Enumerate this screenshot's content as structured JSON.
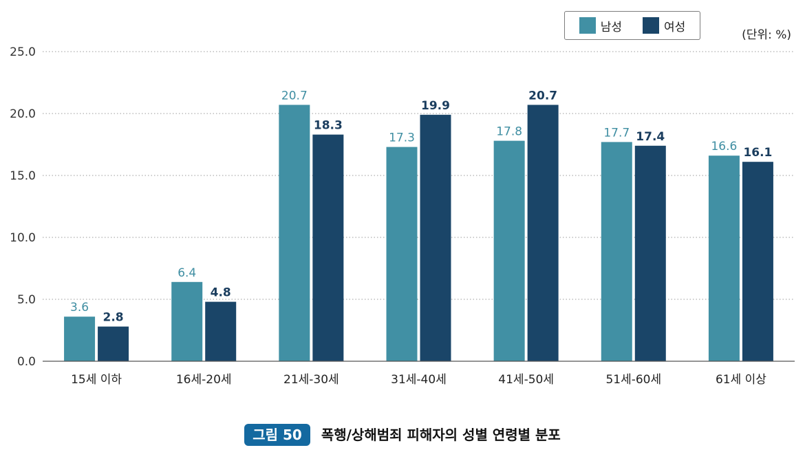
{
  "legend": {
    "items": [
      {
        "label": "남성",
        "color": "#4190a4"
      },
      {
        "label": "여성",
        "color": "#1a4568"
      }
    ]
  },
  "unit": "(단위: %)",
  "caption": {
    "badge": "그림 50",
    "title": "폭행/상해범죄 피해자의 성별 연령별 분포"
  },
  "chart_data": {
    "type": "bar",
    "categories": [
      "15세 이하",
      "16세-20세",
      "21세-30세",
      "31세-40세",
      "41세-50세",
      "51세-60세",
      "61세 이상"
    ],
    "series": [
      {
        "name": "남성",
        "values": [
          3.6,
          6.4,
          20.7,
          17.3,
          17.8,
          17.7,
          16.6
        ],
        "color": "#4190a4",
        "label_color": "#3f8ea2"
      },
      {
        "name": "여성",
        "values": [
          2.8,
          4.8,
          18.3,
          19.9,
          20.7,
          17.4,
          16.1
        ],
        "color": "#1a4568",
        "label_color": "#1a3d5e"
      }
    ],
    "ylim": [
      0,
      25
    ],
    "yticks": [
      "0.0",
      "5.0",
      "10.0",
      "15.0",
      "20.0",
      "25.0"
    ],
    "grid": true,
    "legend_position": "top-right"
  }
}
